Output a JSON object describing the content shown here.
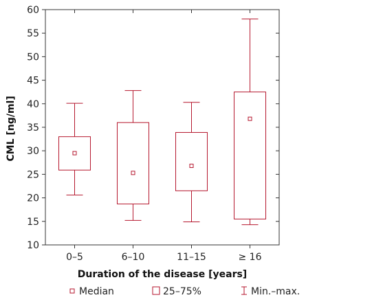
{
  "chart_data": {
    "type": "boxplot",
    "title": "",
    "xlabel": "Duration of the disease [years]",
    "ylabel": "CML [ng/ml]",
    "ylim": [
      10,
      60
    ],
    "yticks": [
      10,
      15,
      20,
      25,
      30,
      35,
      40,
      45,
      50,
      55,
      60
    ],
    "ytick_labels": [
      "10",
      "15",
      "20",
      "25",
      "30",
      "35",
      "40",
      "45",
      "50",
      "55",
      "60"
    ],
    "categories": [
      "0–5",
      "6–10",
      "11–15",
      "≥ 16"
    ],
    "boxes": [
      {
        "category": "0–5",
        "min": 20.6,
        "q1": 25.9,
        "median": 29.5,
        "q3": 33.0,
        "max": 40.1
      },
      {
        "category": "6–10",
        "min": 15.2,
        "q1": 18.7,
        "median": 25.3,
        "q3": 36.0,
        "max": 42.8
      },
      {
        "category": "11–15",
        "min": 14.9,
        "q1": 21.5,
        "median": 26.8,
        "q3": 33.9,
        "max": 40.3
      },
      {
        "category": "≥ 16",
        "min": 14.3,
        "q1": 15.5,
        "median": 36.8,
        "q3": 42.5,
        "max": 58.0
      }
    ],
    "grid": false,
    "legend_position": "bottom",
    "legend": [
      {
        "label": "Median",
        "symbol": "small-square"
      },
      {
        "label": "25–75%",
        "symbol": "box"
      },
      {
        "label": "Min.–max.",
        "symbol": "whisker"
      }
    ],
    "colors": {
      "series": "#b5162d",
      "axis": "#333333",
      "text": "#222222"
    }
  }
}
